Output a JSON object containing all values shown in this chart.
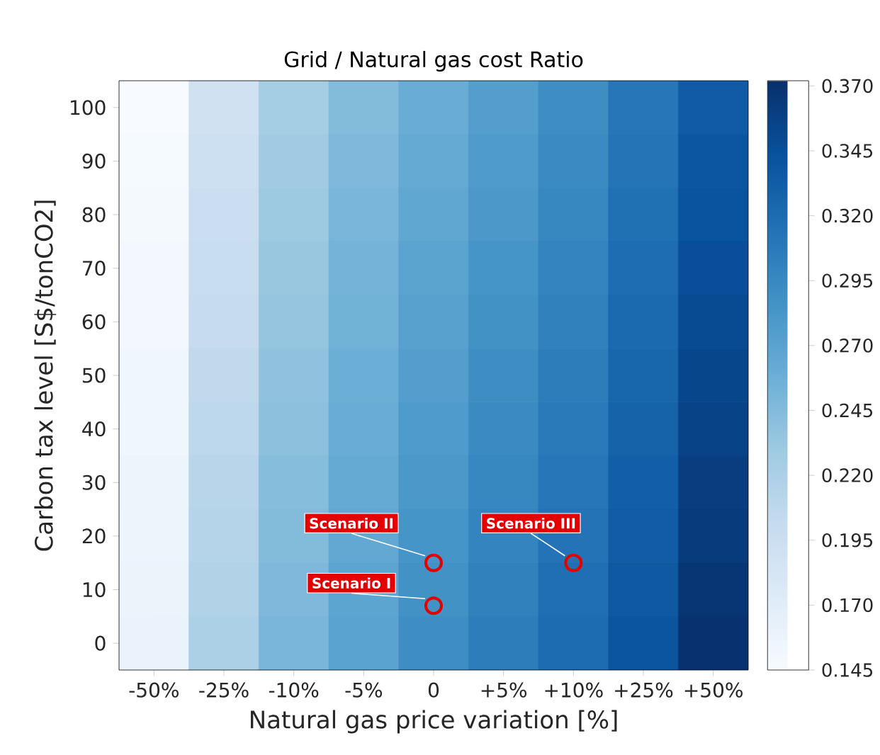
{
  "chart_data": {
    "type": "heatmap",
    "title": "Grid / Natural gas cost Ratio",
    "xlabel": "Natural gas price variation [%]",
    "ylabel": "Carbon tax level [S$/tonCO2]",
    "categories": [
      "-50%",
      "-25%",
      "-10%",
      "-5%",
      "0",
      "+5%",
      "+10%",
      "+25%",
      "+50%"
    ],
    "ylim": [
      -5,
      105
    ],
    "yticks": [
      0,
      10,
      20,
      30,
      40,
      50,
      60,
      70,
      80,
      90,
      100
    ],
    "cells": [
      [
        0.145,
        0.19,
        0.225,
        0.245,
        0.26,
        0.275,
        0.29,
        0.31,
        0.335
      ],
      [
        0.147,
        0.193,
        0.228,
        0.248,
        0.263,
        0.278,
        0.293,
        0.313,
        0.339
      ],
      [
        0.148,
        0.196,
        0.23,
        0.25,
        0.266,
        0.281,
        0.296,
        0.316,
        0.342
      ],
      [
        0.15,
        0.199,
        0.233,
        0.253,
        0.269,
        0.284,
        0.299,
        0.319,
        0.346
      ],
      [
        0.151,
        0.202,
        0.235,
        0.255,
        0.272,
        0.287,
        0.302,
        0.322,
        0.349
      ],
      [
        0.153,
        0.205,
        0.238,
        0.258,
        0.275,
        0.29,
        0.305,
        0.325,
        0.353
      ],
      [
        0.154,
        0.208,
        0.24,
        0.26,
        0.278,
        0.293,
        0.308,
        0.328,
        0.356
      ],
      [
        0.156,
        0.211,
        0.243,
        0.263,
        0.281,
        0.296,
        0.311,
        0.331,
        0.36
      ],
      [
        0.157,
        0.214,
        0.245,
        0.265,
        0.284,
        0.299,
        0.314,
        0.334,
        0.363
      ],
      [
        0.159,
        0.217,
        0.248,
        0.268,
        0.287,
        0.302,
        0.317,
        0.337,
        0.367
      ],
      [
        0.16,
        0.22,
        0.25,
        0.27,
        0.29,
        0.305,
        0.32,
        0.34,
        0.37
      ]
    ],
    "clim": [
      0.145,
      0.372
    ],
    "cticks": [
      {
        "value": 0.145,
        "label": "0.145"
      },
      {
        "value": 0.17,
        "label": "0.170"
      },
      {
        "value": 0.195,
        "label": "0.195"
      },
      {
        "value": 0.22,
        "label": "0.220"
      },
      {
        "value": 0.245,
        "label": "0.245"
      },
      {
        "value": 0.27,
        "label": "0.270"
      },
      {
        "value": 0.295,
        "label": "0.295"
      },
      {
        "value": 0.32,
        "label": "0.320"
      },
      {
        "value": 0.345,
        "label": "0.345"
      },
      {
        "value": 0.37,
        "label": "0.370"
      }
    ],
    "annotations": [
      {
        "text": "Scenario II",
        "x": "0",
        "y": 15
      },
      {
        "text": "Scenario I",
        "x": "0",
        "y": 7
      },
      {
        "text": "Scenario III",
        "x": "+10%",
        "y": 15
      }
    ]
  }
}
